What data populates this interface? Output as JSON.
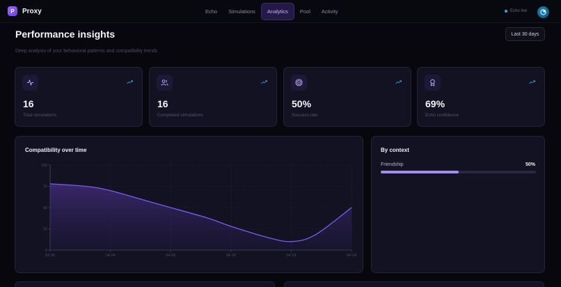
{
  "app": {
    "name": "Proxy",
    "logo_letter": "P"
  },
  "nav": {
    "tabs": [
      {
        "label": "Echo",
        "active": false
      },
      {
        "label": "Simulations",
        "active": false
      },
      {
        "label": "Analytics",
        "active": true
      },
      {
        "label": "Pool",
        "active": false
      },
      {
        "label": "Activity",
        "active": false
      }
    ]
  },
  "status": {
    "text": "Echo live",
    "color": "#2ea8e6"
  },
  "page": {
    "title": "Performance insights",
    "subtitle": "Deep analysis of your behavioral patterns and compatibility trends",
    "range_button": "Last 30 days"
  },
  "stats": [
    {
      "value": "16",
      "label": "Total simulations",
      "icon": "activity-icon",
      "trend_icon": "trending-up-icon"
    },
    {
      "value": "16",
      "label": "Completed simulations",
      "icon": "users-icon",
      "trend_icon": "trending-up-icon"
    },
    {
      "value": "50%",
      "label": "Success rate",
      "icon": "target-icon",
      "trend_icon": "trending-up-icon"
    },
    {
      "value": "69%",
      "label": "Echo confidence",
      "icon": "award-icon",
      "trend_icon": "trending-up-icon"
    }
  ],
  "compatibility": {
    "title": "Compatibility over time"
  },
  "context": {
    "title": "By context",
    "items": [
      {
        "label": "Friendship",
        "value_text": "50%",
        "value": 50
      }
    ]
  },
  "colors": {
    "accent": "#7c5cf0",
    "accent_light": "#a48bf0",
    "background": "#07070d",
    "card": "#121222",
    "trend": "#3d8fd6"
  },
  "chart_data": {
    "type": "area",
    "title": "Compatibility over time",
    "x_ticks": [
      "03-30",
      "04-04",
      "04-09",
      "04-14",
      "04-19",
      "04-24"
    ],
    "y_ticks": [
      0,
      25,
      50,
      75,
      100
    ],
    "ylim": [
      0,
      100
    ],
    "series": [
      {
        "points": [
          {
            "x": "03-30",
            "y": 78
          },
          {
            "x": "04-02",
            "y": 75
          },
          {
            "x": "04-04",
            "y": 70
          },
          {
            "x": "04-07",
            "y": 58
          },
          {
            "x": "04-09",
            "y": 50
          },
          {
            "x": "04-12",
            "y": 38
          },
          {
            "x": "04-14",
            "y": 28
          },
          {
            "x": "04-17",
            "y": 15
          },
          {
            "x": "04-19",
            "y": 10
          },
          {
            "x": "04-21",
            "y": 18
          },
          {
            "x": "04-24",
            "y": 50
          }
        ]
      }
    ],
    "grid": true
  }
}
